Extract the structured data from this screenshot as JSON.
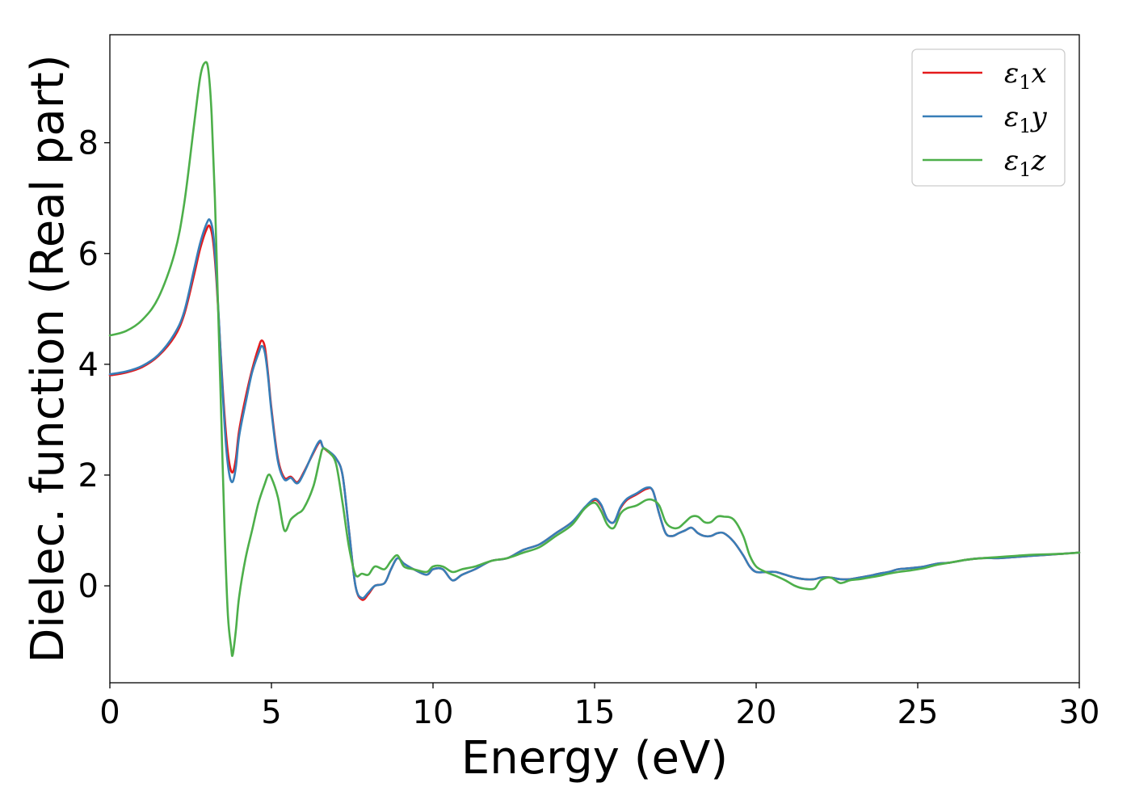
{
  "chart_data": {
    "type": "line",
    "xlabel": "Energy (eV)",
    "ylabel": "Dielec. function (Real part)",
    "xlim": [
      0,
      30
    ],
    "ylim": [
      -1.75,
      9.95
    ],
    "xticks": [
      0,
      5,
      10,
      15,
      20,
      25,
      30
    ],
    "yticks": [
      0,
      2,
      4,
      6,
      8
    ],
    "grid": false,
    "legend_position": "top-right",
    "series": [
      {
        "name": "ε₁x",
        "label_main": "ε",
        "label_sub": "1",
        "label_var": "x",
        "color": "#e41a1c",
        "x": [
          0,
          0.5,
          1.0,
          1.5,
          2.0,
          2.3,
          2.6,
          2.8,
          3.0,
          3.1,
          3.2,
          3.3,
          3.4,
          3.5,
          3.6,
          3.7,
          3.8,
          3.9,
          4.0,
          4.2,
          4.4,
          4.6,
          4.7,
          4.8,
          4.9,
          5.0,
          5.2,
          5.4,
          5.6,
          5.8,
          6.0,
          6.3,
          6.5,
          6.6,
          6.8,
          7.0,
          7.2,
          7.4,
          7.6,
          7.8,
          8.0,
          8.2,
          8.5,
          8.7,
          8.9,
          9.1,
          9.4,
          9.8,
          10.0,
          10.3,
          10.6,
          10.9,
          11.3,
          11.8,
          12.3,
          12.8,
          13.3,
          13.8,
          14.3,
          14.7,
          15.0,
          15.2,
          15.4,
          15.6,
          15.8,
          16.0,
          16.3,
          16.6,
          16.8,
          17.0,
          17.2,
          17.4,
          17.6,
          17.8,
          18.0,
          18.2,
          18.4,
          18.6,
          18.8,
          19.0,
          19.3,
          19.6,
          19.8,
          20.0,
          20.3,
          20.6,
          20.9,
          21.2,
          21.5,
          21.8,
          22.0,
          22.3,
          22.6,
          22.9,
          23.2,
          23.5,
          23.8,
          24.1,
          24.4,
          24.8,
          25.2,
          25.6,
          26.0,
          26.5,
          27.0,
          27.5,
          28.0,
          28.5,
          29.0,
          29.5,
          30.0
        ],
        "y": [
          3.8,
          3.85,
          3.95,
          4.15,
          4.5,
          4.9,
          5.6,
          6.1,
          6.45,
          6.48,
          6.2,
          5.5,
          4.5,
          3.5,
          2.7,
          2.2,
          2.05,
          2.3,
          2.8,
          3.4,
          3.9,
          4.3,
          4.43,
          4.3,
          3.8,
          3.2,
          2.3,
          1.95,
          1.97,
          1.87,
          2.05,
          2.4,
          2.6,
          2.5,
          2.4,
          2.3,
          2.0,
          1.0,
          0.0,
          -0.25,
          -0.15,
          0.0,
          0.05,
          0.3,
          0.5,
          0.4,
          0.3,
          0.2,
          0.3,
          0.3,
          0.1,
          0.2,
          0.3,
          0.45,
          0.5,
          0.65,
          0.75,
          0.95,
          1.15,
          1.4,
          1.55,
          1.45,
          1.2,
          1.15,
          1.4,
          1.55,
          1.65,
          1.75,
          1.72,
          1.3,
          0.95,
          0.9,
          0.95,
          1.0,
          1.05,
          0.95,
          0.9,
          0.9,
          0.95,
          0.95,
          0.8,
          0.55,
          0.35,
          0.25,
          0.25,
          0.25,
          0.2,
          0.15,
          0.12,
          0.12,
          0.15,
          0.15,
          0.12,
          0.12,
          0.15,
          0.18,
          0.22,
          0.25,
          0.3,
          0.32,
          0.35,
          0.4,
          0.42,
          0.47,
          0.5,
          0.5,
          0.52,
          0.54,
          0.56,
          0.58,
          0.6
        ]
      },
      {
        "name": "ε₁y",
        "label_main": "ε",
        "label_sub": "1",
        "label_var": "y",
        "color": "#377eb8",
        "x": [
          0,
          0.5,
          1.0,
          1.5,
          2.0,
          2.3,
          2.6,
          2.8,
          3.0,
          3.1,
          3.2,
          3.3,
          3.4,
          3.5,
          3.6,
          3.7,
          3.8,
          3.9,
          4.0,
          4.2,
          4.4,
          4.6,
          4.7,
          4.8,
          4.9,
          5.0,
          5.2,
          5.4,
          5.6,
          5.8,
          6.0,
          6.3,
          6.5,
          6.6,
          6.8,
          7.0,
          7.2,
          7.4,
          7.6,
          7.8,
          8.0,
          8.2,
          8.5,
          8.7,
          8.9,
          9.1,
          9.4,
          9.8,
          10.0,
          10.3,
          10.6,
          10.9,
          11.3,
          11.8,
          12.3,
          12.8,
          13.3,
          13.8,
          14.3,
          14.7,
          15.0,
          15.2,
          15.4,
          15.6,
          15.8,
          16.0,
          16.3,
          16.6,
          16.8,
          17.0,
          17.2,
          17.4,
          17.6,
          17.8,
          18.0,
          18.2,
          18.4,
          18.6,
          18.8,
          19.0,
          19.3,
          19.6,
          19.8,
          20.0,
          20.3,
          20.6,
          20.9,
          21.2,
          21.5,
          21.8,
          22.0,
          22.3,
          22.6,
          22.9,
          23.2,
          23.5,
          23.8,
          24.1,
          24.4,
          24.8,
          25.2,
          25.6,
          26.0,
          26.5,
          27.0,
          27.5,
          28.0,
          28.5,
          29.0,
          29.5,
          30.0
        ],
        "y": [
          3.82,
          3.87,
          3.97,
          4.17,
          4.55,
          4.95,
          5.7,
          6.2,
          6.55,
          6.6,
          6.35,
          5.6,
          4.5,
          3.4,
          2.5,
          2.0,
          1.88,
          2.15,
          2.7,
          3.3,
          3.85,
          4.2,
          4.33,
          4.2,
          3.75,
          3.15,
          2.25,
          1.92,
          1.95,
          1.85,
          2.03,
          2.42,
          2.62,
          2.5,
          2.42,
          2.3,
          2.0,
          1.0,
          0.0,
          -0.22,
          -0.12,
          0.0,
          0.05,
          0.3,
          0.5,
          0.4,
          0.3,
          0.2,
          0.3,
          0.3,
          0.1,
          0.2,
          0.3,
          0.45,
          0.5,
          0.65,
          0.75,
          0.95,
          1.15,
          1.42,
          1.57,
          1.47,
          1.2,
          1.15,
          1.42,
          1.57,
          1.67,
          1.77,
          1.72,
          1.3,
          0.95,
          0.9,
          0.95,
          1.0,
          1.05,
          0.95,
          0.9,
          0.9,
          0.95,
          0.95,
          0.8,
          0.55,
          0.35,
          0.25,
          0.25,
          0.25,
          0.2,
          0.15,
          0.12,
          0.12,
          0.15,
          0.15,
          0.12,
          0.12,
          0.15,
          0.18,
          0.22,
          0.25,
          0.3,
          0.32,
          0.35,
          0.4,
          0.42,
          0.47,
          0.5,
          0.5,
          0.52,
          0.54,
          0.56,
          0.58,
          0.6
        ]
      },
      {
        "name": "ε₁z",
        "label_main": "ε",
        "label_sub": "1",
        "label_var": "z",
        "color": "#4daf4a",
        "x": [
          0,
          0.5,
          1.0,
          1.5,
          2.0,
          2.3,
          2.6,
          2.8,
          2.95,
          3.05,
          3.15,
          3.25,
          3.35,
          3.45,
          3.55,
          3.65,
          3.75,
          3.8,
          3.9,
          4.0,
          4.2,
          4.4,
          4.6,
          4.8,
          4.9,
          5.0,
          5.2,
          5.4,
          5.6,
          5.8,
          6.0,
          6.3,
          6.5,
          6.6,
          6.8,
          7.0,
          7.2,
          7.4,
          7.6,
          7.8,
          8.0,
          8.2,
          8.5,
          8.7,
          8.9,
          9.1,
          9.4,
          9.8,
          10.0,
          10.3,
          10.6,
          10.9,
          11.3,
          11.8,
          12.3,
          12.8,
          13.3,
          13.8,
          14.3,
          14.7,
          15.0,
          15.2,
          15.4,
          15.6,
          15.8,
          16.0,
          16.3,
          16.6,
          16.8,
          17.0,
          17.2,
          17.4,
          17.6,
          17.8,
          18.0,
          18.2,
          18.4,
          18.6,
          18.8,
          19.0,
          19.3,
          19.6,
          19.8,
          20.0,
          20.3,
          20.6,
          20.9,
          21.2,
          21.5,
          21.8,
          22.0,
          22.3,
          22.6,
          22.9,
          23.2,
          23.5,
          23.8,
          24.1,
          24.4,
          24.8,
          25.2,
          25.6,
          26.0,
          26.5,
          27.0,
          27.5,
          28.0,
          28.5,
          29.0,
          29.5,
          30.0
        ],
        "y": [
          4.52,
          4.6,
          4.8,
          5.2,
          6.0,
          6.9,
          8.3,
          9.2,
          9.45,
          9.3,
          8.5,
          7.0,
          5.0,
          3.0,
          1.0,
          -0.5,
          -1.1,
          -1.25,
          -0.8,
          -0.2,
          0.5,
          1.0,
          1.5,
          1.85,
          2.0,
          1.95,
          1.6,
          1.0,
          1.2,
          1.3,
          1.4,
          1.8,
          2.3,
          2.48,
          2.4,
          2.2,
          1.5,
          0.7,
          0.2,
          0.22,
          0.2,
          0.35,
          0.3,
          0.45,
          0.55,
          0.35,
          0.3,
          0.25,
          0.35,
          0.35,
          0.25,
          0.3,
          0.35,
          0.45,
          0.5,
          0.6,
          0.7,
          0.9,
          1.1,
          1.4,
          1.5,
          1.35,
          1.1,
          1.05,
          1.3,
          1.4,
          1.45,
          1.55,
          1.55,
          1.45,
          1.15,
          1.05,
          1.05,
          1.15,
          1.25,
          1.25,
          1.15,
          1.15,
          1.25,
          1.25,
          1.2,
          0.9,
          0.55,
          0.35,
          0.25,
          0.18,
          0.1,
          0.0,
          -0.05,
          -0.05,
          0.1,
          0.15,
          0.05,
          0.1,
          0.12,
          0.15,
          0.18,
          0.22,
          0.25,
          0.28,
          0.32,
          0.38,
          0.42,
          0.47,
          0.5,
          0.52,
          0.54,
          0.56,
          0.57,
          0.58,
          0.6
        ]
      }
    ]
  }
}
